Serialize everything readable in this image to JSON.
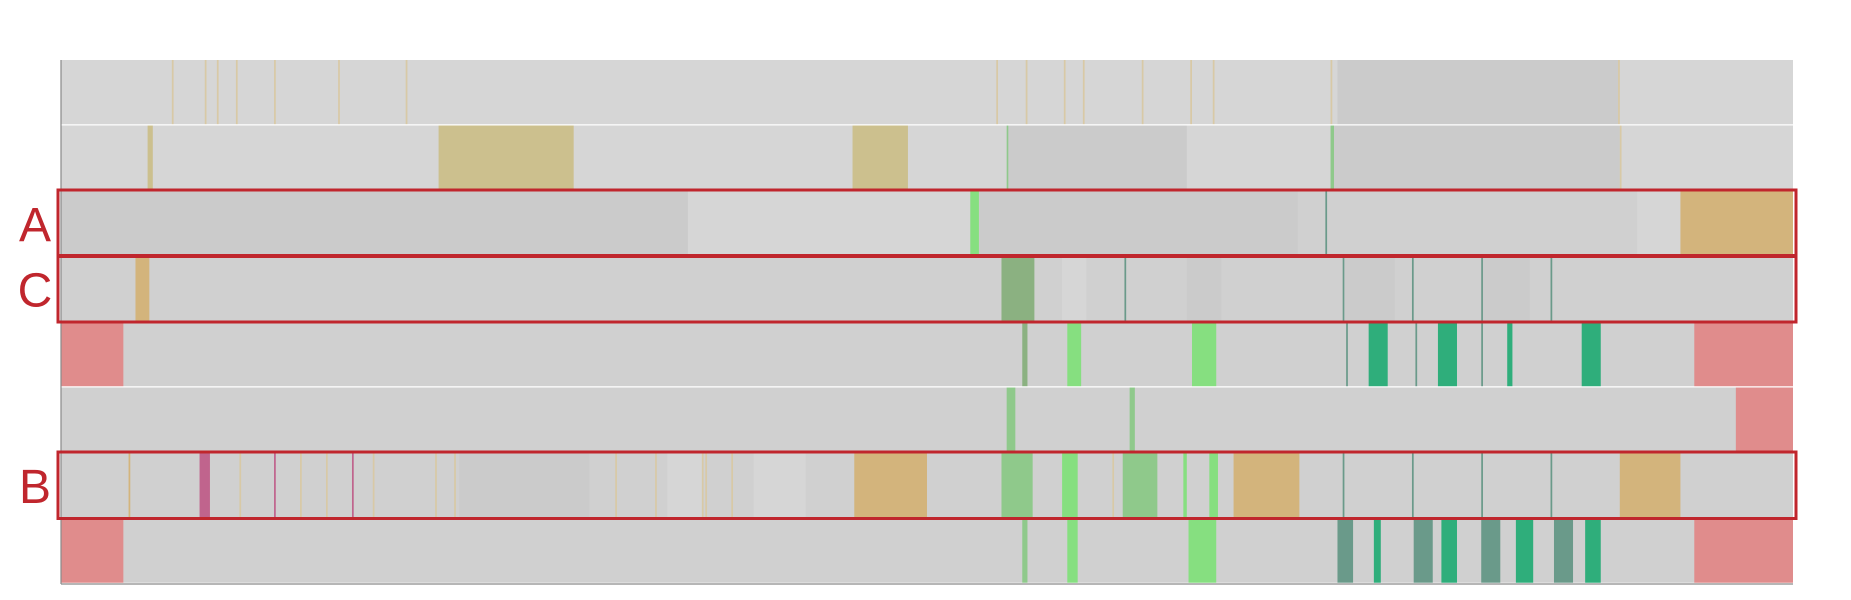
{
  "colors": {
    "background": "#ffffff",
    "track": "#d0d0d0",
    "track_alt": "#cbcbcb",
    "track_light": "#d6d6d6",
    "separator": "#ffffff",
    "axis": "#8a8a8a",
    "highlight_box": "#c0262d",
    "label": "#c0262d",
    "olive": "#ccc08e",
    "tan": "#d3b47c",
    "pale_tan": "#d8c9a6",
    "green_dark": "#8bb181",
    "green_light": "#86df80",
    "green_mid": "#8fc98b",
    "teal": "#2fae7b",
    "teal_gray": "#6a9a8a",
    "red": "#e08c8c",
    "magenta": "#c0648d"
  },
  "highlights": [
    {
      "label": "A",
      "track": 2
    },
    {
      "label": "C",
      "track": 3
    },
    {
      "label": "B",
      "track": 6
    }
  ],
  "tracks": [
    {
      "segments": [
        {
          "s": 0,
          "e": 1,
          "c": "track_light"
        },
        {
          "s": 0.064,
          "e": 0.065,
          "c": "pale_tan"
        },
        {
          "s": 0.083,
          "e": 0.084,
          "c": "pale_tan"
        },
        {
          "s": 0.09,
          "e": 0.091,
          "c": "pale_tan"
        },
        {
          "s": 0.101,
          "e": 0.102,
          "c": "pale_tan"
        },
        {
          "s": 0.123,
          "e": 0.124,
          "c": "pale_tan"
        },
        {
          "s": 0.16,
          "e": 0.161,
          "c": "pale_tan"
        },
        {
          "s": 0.199,
          "e": 0.2,
          "c": "pale_tan"
        },
        {
          "s": 0.54,
          "e": 0.541,
          "c": "pale_tan"
        },
        {
          "s": 0.557,
          "e": 0.558,
          "c": "pale_tan"
        },
        {
          "s": 0.579,
          "e": 0.58,
          "c": "pale_tan"
        },
        {
          "s": 0.59,
          "e": 0.591,
          "c": "pale_tan"
        },
        {
          "s": 0.624,
          "e": 0.625,
          "c": "pale_tan"
        },
        {
          "s": 0.652,
          "e": 0.653,
          "c": "pale_tan"
        },
        {
          "s": 0.665,
          "e": 0.666,
          "c": "pale_tan"
        },
        {
          "s": 0.733,
          "e": 0.734,
          "c": "pale_tan"
        },
        {
          "s": 0.737,
          "e": 0.9,
          "c": "track_alt"
        },
        {
          "s": 0.899,
          "e": 0.9,
          "c": "pale_tan"
        }
      ]
    },
    {
      "segments": [
        {
          "s": 0,
          "e": 1,
          "c": "track_light"
        },
        {
          "s": 0.05,
          "e": 0.053,
          "c": "olive"
        },
        {
          "s": 0.218,
          "e": 0.296,
          "c": "olive"
        },
        {
          "s": 0.457,
          "e": 0.489,
          "c": "olive"
        },
        {
          "s": 0.546,
          "e": 0.547,
          "c": "green_mid"
        },
        {
          "s": 0.547,
          "e": 0.65,
          "c": "track_alt"
        },
        {
          "s": 0.733,
          "e": 0.735,
          "c": "green_mid"
        },
        {
          "s": 0.735,
          "e": 0.9,
          "c": "track_alt"
        },
        {
          "s": 0.9,
          "e": 0.901,
          "c": "pale_tan"
        }
      ]
    },
    {
      "segments": [
        {
          "s": 0,
          "e": 1,
          "c": "track"
        },
        {
          "s": 0,
          "e": 0.362,
          "c": "track_alt"
        },
        {
          "s": 0.362,
          "e": 0.525,
          "c": "track_light"
        },
        {
          "s": 0.525,
          "e": 0.53,
          "c": "green_light"
        },
        {
          "s": 0.53,
          "e": 0.714,
          "c": "track_alt"
        },
        {
          "s": 0.73,
          "e": 0.731,
          "c": "teal_gray"
        },
        {
          "s": 0.91,
          "e": 0.935,
          "c": "track_light"
        },
        {
          "s": 0.935,
          "e": 1,
          "c": "tan"
        }
      ]
    },
    {
      "segments": [
        {
          "s": 0,
          "e": 1,
          "c": "track"
        },
        {
          "s": 0.043,
          "e": 0.051,
          "c": "tan"
        },
        {
          "s": 0.543,
          "e": 0.562,
          "c": "green_dark"
        },
        {
          "s": 0.578,
          "e": 0.592,
          "c": "track_light"
        },
        {
          "s": 0.614,
          "e": 0.615,
          "c": "teal_gray"
        },
        {
          "s": 0.65,
          "e": 0.67,
          "c": "track_alt"
        },
        {
          "s": 0.74,
          "e": 0.741,
          "c": "teal_gray"
        },
        {
          "s": 0.78,
          "e": 0.781,
          "c": "teal_gray"
        },
        {
          "s": 0.82,
          "e": 0.821,
          "c": "teal_gray"
        },
        {
          "s": 0.86,
          "e": 0.861,
          "c": "teal_gray"
        },
        {
          "s": 0.741,
          "e": 0.77,
          "c": "track_alt"
        },
        {
          "s": 0.821,
          "e": 0.848,
          "c": "track_alt"
        }
      ]
    },
    {
      "segments": [
        {
          "s": 0,
          "e": 1,
          "c": "track"
        },
        {
          "s": 0,
          "e": 0.036,
          "c": "red"
        },
        {
          "s": 0.555,
          "e": 0.558,
          "c": "green_dark"
        },
        {
          "s": 0.581,
          "e": 0.589,
          "c": "green_light"
        },
        {
          "s": 0.653,
          "e": 0.667,
          "c": "green_light"
        },
        {
          "s": 0.742,
          "e": 0.743,
          "c": "teal_gray"
        },
        {
          "s": 0.755,
          "e": 0.766,
          "c": "teal"
        },
        {
          "s": 0.782,
          "e": 0.783,
          "c": "teal_gray"
        },
        {
          "s": 0.795,
          "e": 0.806,
          "c": "teal"
        },
        {
          "s": 0.82,
          "e": 0.821,
          "c": "teal_gray"
        },
        {
          "s": 0.835,
          "e": 0.838,
          "c": "teal"
        },
        {
          "s": 0.878,
          "e": 0.889,
          "c": "teal"
        },
        {
          "s": 0.943,
          "e": 1,
          "c": "red"
        }
      ]
    },
    {
      "segments": [
        {
          "s": 0,
          "e": 1,
          "c": "track"
        },
        {
          "s": 0.546,
          "e": 0.551,
          "c": "green_mid"
        },
        {
          "s": 0.617,
          "e": 0.62,
          "c": "green_mid"
        },
        {
          "s": 0.967,
          "e": 1,
          "c": "red"
        }
      ]
    },
    {
      "segments": [
        {
          "s": 0,
          "e": 1,
          "c": "track"
        },
        {
          "s": 0.039,
          "e": 0.04,
          "c": "tan"
        },
        {
          "s": 0.08,
          "e": 0.086,
          "c": "magenta"
        },
        {
          "s": 0.103,
          "e": 0.104,
          "c": "pale_tan"
        },
        {
          "s": 0.123,
          "e": 0.124,
          "c": "magenta"
        },
        {
          "s": 0.138,
          "e": 0.139,
          "c": "pale_tan"
        },
        {
          "s": 0.153,
          "e": 0.154,
          "c": "pale_tan"
        },
        {
          "s": 0.168,
          "e": 0.169,
          "c": "magenta"
        },
        {
          "s": 0.18,
          "e": 0.181,
          "c": "pale_tan"
        },
        {
          "s": 0.216,
          "e": 0.217,
          "c": "pale_tan"
        },
        {
          "s": 0.227,
          "e": 0.228,
          "c": "pale_tan"
        },
        {
          "s": 0.23,
          "e": 0.305,
          "c": "track_alt"
        },
        {
          "s": 0.32,
          "e": 0.321,
          "c": "pale_tan"
        },
        {
          "s": 0.343,
          "e": 0.344,
          "c": "pale_tan"
        },
        {
          "s": 0.35,
          "e": 0.37,
          "c": "track_light"
        },
        {
          "s": 0.37,
          "e": 0.371,
          "c": "pale_tan"
        },
        {
          "s": 0.372,
          "e": 0.373,
          "c": "pale_tan"
        },
        {
          "s": 0.387,
          "e": 0.388,
          "c": "pale_tan"
        },
        {
          "s": 0.4,
          "e": 0.43,
          "c": "track_light"
        },
        {
          "s": 0.458,
          "e": 0.5,
          "c": "tan"
        },
        {
          "s": 0.543,
          "e": 0.561,
          "c": "green_mid"
        },
        {
          "s": 0.578,
          "e": 0.587,
          "c": "green_light"
        },
        {
          "s": 0.607,
          "e": 0.608,
          "c": "pale_tan"
        },
        {
          "s": 0.613,
          "e": 0.633,
          "c": "green_mid"
        },
        {
          "s": 0.648,
          "e": 0.65,
          "c": "green_light"
        },
        {
          "s": 0.663,
          "e": 0.668,
          "c": "green_light"
        },
        {
          "s": 0.677,
          "e": 0.715,
          "c": "tan"
        },
        {
          "s": 0.74,
          "e": 0.741,
          "c": "teal_gray"
        },
        {
          "s": 0.78,
          "e": 0.781,
          "c": "teal_gray"
        },
        {
          "s": 0.82,
          "e": 0.821,
          "c": "teal_gray"
        },
        {
          "s": 0.86,
          "e": 0.861,
          "c": "teal_gray"
        },
        {
          "s": 0.9,
          "e": 0.935,
          "c": "tan"
        }
      ]
    },
    {
      "segments": [
        {
          "s": 0,
          "e": 1,
          "c": "track"
        },
        {
          "s": 0,
          "e": 0.036,
          "c": "red"
        },
        {
          "s": 0.555,
          "e": 0.558,
          "c": "green_mid"
        },
        {
          "s": 0.581,
          "e": 0.587,
          "c": "green_light"
        },
        {
          "s": 0.651,
          "e": 0.667,
          "c": "green_light"
        },
        {
          "s": 0.737,
          "e": 0.746,
          "c": "teal_gray"
        },
        {
          "s": 0.758,
          "e": 0.762,
          "c": "teal"
        },
        {
          "s": 0.781,
          "e": 0.792,
          "c": "teal_gray"
        },
        {
          "s": 0.797,
          "e": 0.806,
          "c": "teal"
        },
        {
          "s": 0.82,
          "e": 0.831,
          "c": "teal_gray"
        },
        {
          "s": 0.84,
          "e": 0.85,
          "c": "teal"
        },
        {
          "s": 0.862,
          "e": 0.873,
          "c": "teal_gray"
        },
        {
          "s": 0.88,
          "e": 0.889,
          "c": "teal"
        },
        {
          "s": 0.943,
          "e": 1,
          "c": "red"
        }
      ]
    }
  ]
}
